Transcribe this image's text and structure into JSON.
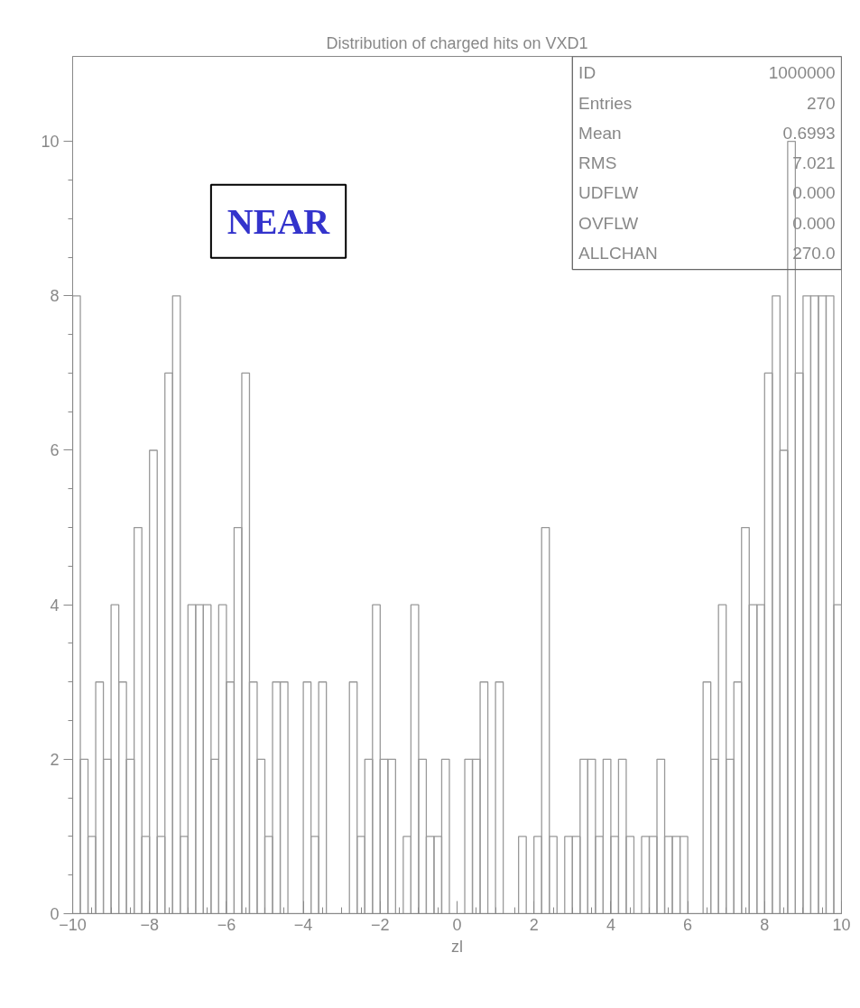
{
  "chart_data": {
    "type": "histogram",
    "title": "Distribution of charged hits on VXD1",
    "xlabel": "zl",
    "bins": [
      -10.0,
      -9.8,
      -9.6,
      -9.4,
      -9.2,
      -9.0,
      -8.8,
      -8.6,
      -8.4,
      -8.2,
      -8.0,
      -7.8,
      -7.6,
      -7.4,
      -7.2,
      -7.0,
      -6.8,
      -6.6,
      -6.4,
      -6.2,
      -6.0,
      -5.8,
      -5.6,
      -5.4,
      -5.2,
      -5.0,
      -4.8,
      -4.6,
      -4.4,
      -4.2,
      -4.0,
      -3.8,
      -3.6,
      -3.4,
      -3.2,
      -3.0,
      -2.8,
      -2.6,
      -2.4,
      -2.2,
      -2.0,
      -1.8,
      -1.6,
      -1.4,
      -1.2,
      -1.0,
      -0.8,
      -0.6,
      -0.4,
      -0.2,
      0.0,
      0.2,
      0.4,
      0.6,
      0.8,
      1.0,
      1.2,
      1.4,
      1.6,
      1.8,
      2.0,
      2.2,
      2.4,
      2.6,
      2.8,
      3.0,
      3.2,
      3.4,
      3.6,
      3.8,
      4.0,
      4.2,
      4.4,
      4.6,
      4.8,
      5.0,
      5.2,
      5.4,
      5.6,
      5.8,
      6.0,
      6.2,
      6.4,
      6.6,
      6.8,
      7.0,
      7.2,
      7.4,
      7.6,
      7.8,
      8.0,
      8.2,
      8.4,
      8.6,
      8.8,
      9.0,
      9.2,
      9.4,
      9.6,
      9.8,
      10.0
    ],
    "values": [
      8,
      2,
      1,
      3,
      2,
      4,
      3,
      2,
      5,
      1,
      6,
      1,
      7,
      8,
      1,
      4,
      4,
      4,
      2,
      4,
      3,
      5,
      7,
      3,
      2,
      1,
      3,
      3,
      0,
      0,
      3,
      1,
      3,
      0,
      0,
      0,
      3,
      1,
      2,
      4,
      2,
      2,
      0,
      1,
      4,
      2,
      1,
      1,
      2,
      0,
      0,
      2,
      2,
      3,
      0,
      3,
      0,
      0,
      1,
      0,
      1,
      5,
      1,
      0,
      1,
      1,
      2,
      2,
      1,
      2,
      1,
      2,
      1,
      0,
      1,
      1,
      2,
      1,
      1,
      1,
      0,
      0,
      3,
      2,
      4,
      2,
      3,
      5,
      4,
      4,
      7,
      8,
      6,
      10,
      7,
      8,
      8,
      8,
      8,
      4
    ],
    "color": "#999999",
    "xlim": [
      -10,
      10
    ],
    "ylim": [
      0,
      11.1
    ],
    "xticks": [
      -10,
      -8,
      -6,
      -4,
      -2,
      0,
      2,
      4,
      6,
      8,
      10
    ],
    "yticks": [
      0,
      2,
      4,
      6,
      8,
      10
    ],
    "grid": false,
    "annotations": [
      "NEAR",
      "ID 1000000",
      "Entries 270",
      "Mean 0.6993",
      "RMS 7.021",
      "UDFLW 0.000",
      "OVFLW 0.000",
      "ALLCHAN 270.0"
    ]
  }
}
